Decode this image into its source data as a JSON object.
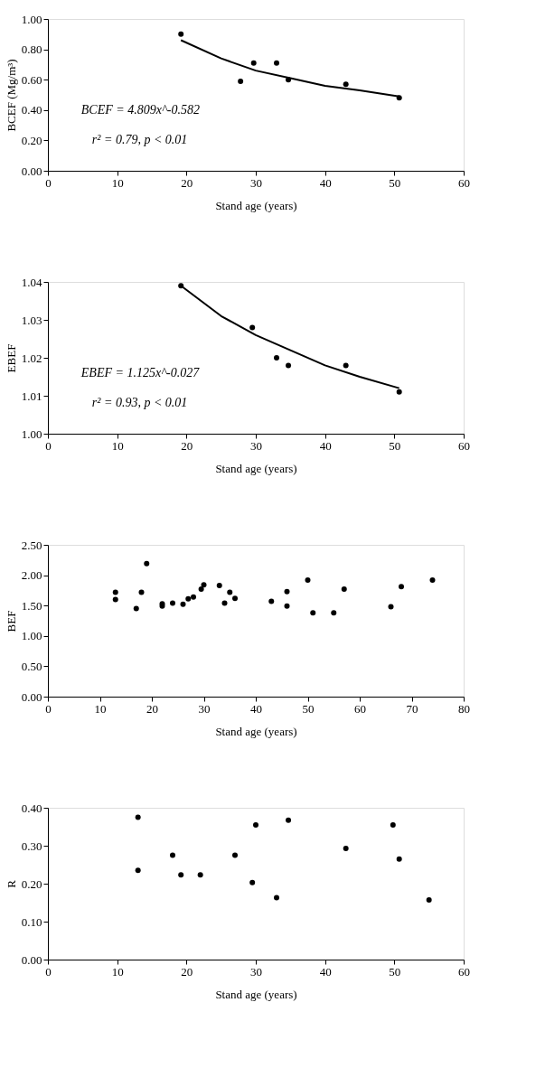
{
  "chart_data": [
    {
      "type": "scatter",
      "xlabel": "Stand age (years)",
      "ylabel": "BCEF (Mg/m³)",
      "xlim": [
        0,
        60
      ],
      "xticks": [
        0,
        10,
        20,
        30,
        40,
        50,
        60
      ],
      "ylim": [
        0,
        1
      ],
      "yticks": [
        {
          "value": 0,
          "label": "0.00"
        },
        {
          "value": 0.2,
          "label": "0.20"
        },
        {
          "value": 0.4,
          "label": "0.40"
        },
        {
          "value": 0.6,
          "label": "0.60"
        },
        {
          "value": 0.8,
          "label": "0.80"
        },
        {
          "value": 1,
          "label": "1.00"
        }
      ],
      "grid": false,
      "annotations": [
        "BCEF = 4.809x^-0.582",
        "r² = 0.79, p < 0.01"
      ],
      "series": [
        {
          "marker": "circle",
          "color": "#000000",
          "x": [
            19.2,
            27.8,
            29.7,
            33,
            34.7,
            43,
            50.7
          ],
          "values": [
            0.9,
            0.59,
            0.71,
            0.71,
            0.6,
            0.57,
            0.48
          ]
        },
        {
          "type": "line",
          "marker": "none",
          "color": "#000000",
          "x": [
            19.2,
            25,
            30,
            35,
            40,
            45,
            50.7
          ],
          "values": [
            0.86,
            0.74,
            0.66,
            0.61,
            0.56,
            0.53,
            0.49
          ]
        }
      ]
    },
    {
      "type": "scatter",
      "xlabel": "Stand age (years)",
      "ylabel": "EBEF",
      "xlim": [
        0,
        60
      ],
      "xticks": [
        0,
        10,
        20,
        30,
        40,
        50,
        60
      ],
      "ylim": [
        1,
        1.04
      ],
      "yticks": [
        {
          "value": 1,
          "label": "1.00"
        },
        {
          "value": 1.01,
          "label": "1.01"
        },
        {
          "value": 1.02,
          "label": "1.02"
        },
        {
          "value": 1.03,
          "label": "1.03"
        },
        {
          "value": 1.04,
          "label": "1.04"
        }
      ],
      "grid": false,
      "annotations": [
        "EBEF = 1.125x^-0.027",
        "r² = 0.93, p < 0.01"
      ],
      "series": [
        {
          "marker": "circle",
          "color": "#000000",
          "x": [
            19.2,
            29.5,
            33,
            34.7,
            43,
            50.7
          ],
          "values": [
            1.039,
            1.028,
            1.02,
            1.018,
            1.018,
            1.011
          ]
        },
        {
          "type": "line",
          "marker": "none",
          "color": "#000000",
          "x": [
            19.2,
            25,
            30,
            35,
            40,
            45,
            50.7
          ],
          "values": [
            1.039,
            1.031,
            1.026,
            1.022,
            1.018,
            1.015,
            1.012
          ]
        }
      ]
    },
    {
      "type": "scatter",
      "xlabel": "Stand age (years)",
      "ylabel": "BEF",
      "xlim": [
        0,
        80
      ],
      "xticks": [
        0,
        10,
        20,
        30,
        40,
        50,
        60,
        70,
        80
      ],
      "ylim": [
        0,
        2.5
      ],
      "yticks": [
        {
          "value": 0,
          "label": "0.00"
        },
        {
          "value": 0.5,
          "label": "0.50"
        },
        {
          "value": 1,
          "label": "1.00"
        },
        {
          "value": 1.5,
          "label": "1.50"
        },
        {
          "value": 2,
          "label": "2.00"
        },
        {
          "value": 2.5,
          "label": "2.50"
        }
      ],
      "grid": false,
      "marker": "circle",
      "series": [
        {
          "color": "#000000",
          "x": [
            13,
            13,
            17,
            18,
            19,
            22,
            22,
            24,
            26,
            27,
            28,
            29.5,
            30,
            33,
            34,
            35,
            36,
            43,
            46,
            46,
            50,
            51,
            55,
            57,
            66,
            68,
            74
          ],
          "values": [
            1.72,
            1.6,
            1.45,
            1.72,
            2.19,
            1.53,
            1.49,
            1.54,
            1.52,
            1.61,
            1.64,
            1.77,
            1.84,
            1.83,
            1.54,
            1.72,
            1.62,
            1.57,
            1.73,
            1.49,
            1.92,
            1.38,
            1.38,
            1.77,
            1.48,
            1.81,
            1.92
          ]
        }
      ]
    },
    {
      "type": "scatter",
      "xlabel": "Stand age (years)",
      "ylabel": "R",
      "xlim": [
        0,
        60
      ],
      "xticks": [
        0,
        10,
        20,
        30,
        40,
        50,
        60
      ],
      "ylim": [
        0,
        0.4
      ],
      "yticks": [
        {
          "value": 0,
          "label": "0.00"
        },
        {
          "value": 0.1,
          "label": "0.10"
        },
        {
          "value": 0.2,
          "label": "0.20"
        },
        {
          "value": 0.3,
          "label": "0.30"
        },
        {
          "value": 0.4,
          "label": "0.40"
        }
      ],
      "grid": false,
      "marker": "circle",
      "series": [
        {
          "color": "#000000",
          "x": [
            13,
            13,
            18,
            19.2,
            22,
            27,
            29.5,
            30,
            33,
            34.7,
            43,
            49.8,
            50.7,
            55
          ],
          "values": [
            0.375,
            0.235,
            0.275,
            0.223,
            0.223,
            0.275,
            0.203,
            0.355,
            0.163,
            0.367,
            0.293,
            0.355,
            0.265,
            0.157
          ]
        }
      ]
    }
  ]
}
